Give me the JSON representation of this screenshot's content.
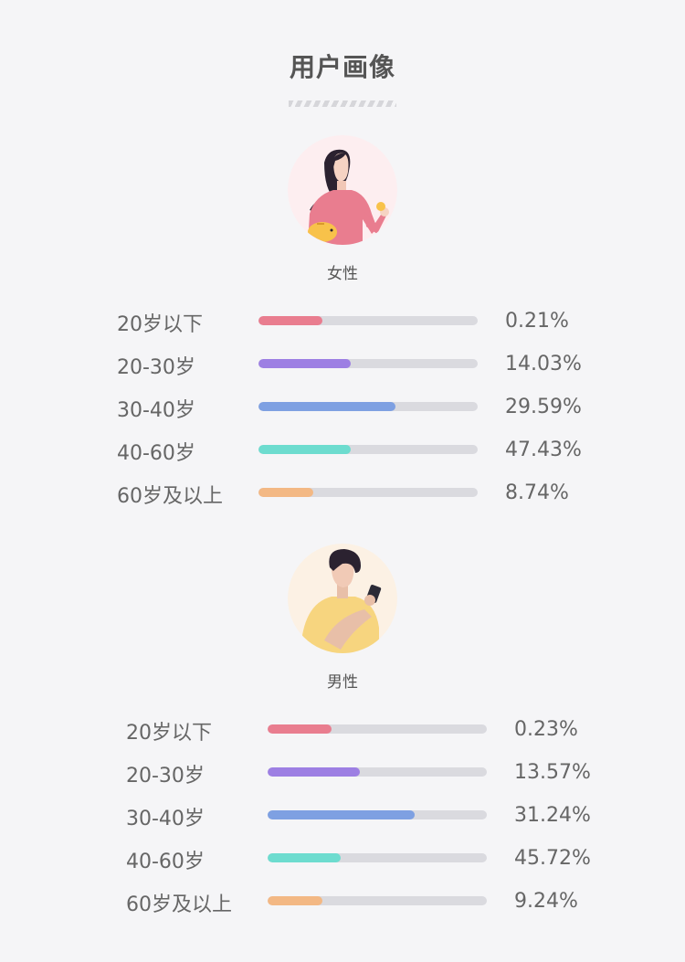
{
  "title": "用户画像",
  "colors": {
    "under20": "#e97d8f",
    "age20_30": "#9d7fe3",
    "age30_40": "#7ea0e2",
    "age40_60": "#6ddccf",
    "over60": "#f3b884"
  },
  "female": {
    "label": "女性",
    "avatar_icon": "woman-with-piggy-bank-icon",
    "rows": [
      {
        "label": "20岁以下",
        "percent": "0.21%",
        "bar_fill": 0.29
      },
      {
        "label": "20-30岁",
        "percent": "14.03%",
        "bar_fill": 0.42
      },
      {
        "label": "30-40岁",
        "percent": "29.59%",
        "bar_fill": 0.625
      },
      {
        "label": "40-60岁",
        "percent": "47.43%",
        "bar_fill": 0.42
      },
      {
        "label": "60岁及以上",
        "percent": "8.74%",
        "bar_fill": 0.25
      }
    ]
  },
  "male": {
    "label": "男性",
    "avatar_icon": "man-with-phone-icon",
    "rows": [
      {
        "label": "20岁以下",
        "percent": "0.23%",
        "bar_fill": 0.29
      },
      {
        "label": "20-30岁",
        "percent": "13.57%",
        "bar_fill": 0.42
      },
      {
        "label": "30-40岁",
        "percent": "31.24%",
        "bar_fill": 0.67
      },
      {
        "label": "40-60岁",
        "percent": "45.72%",
        "bar_fill": 0.335
      },
      {
        "label": "60岁及以上",
        "percent": "9.24%",
        "bar_fill": 0.25
      }
    ]
  }
}
